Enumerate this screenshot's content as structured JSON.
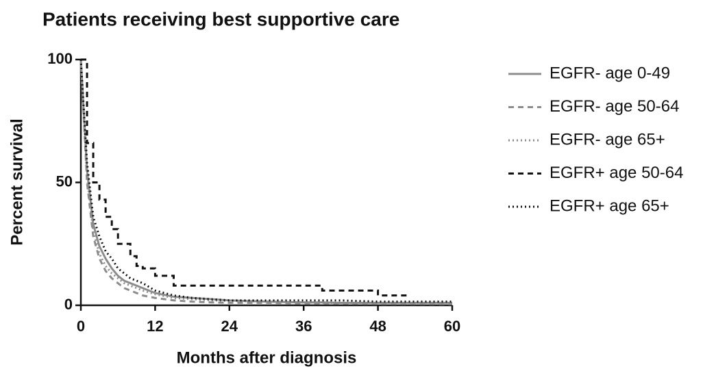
{
  "chart_data": {
    "type": "line",
    "title": "Patients receiving best supportive care",
    "xlabel": "Months after diagnosis",
    "ylabel": "Percent survival",
    "x": [
      0,
      1,
      2,
      3,
      4,
      5,
      6,
      7,
      8,
      9,
      10,
      12,
      15,
      18,
      21,
      24,
      30,
      36,
      39,
      42,
      48,
      53,
      60
    ],
    "series": [
      {
        "name": "EGFR- age 0-49",
        "color": "#8c8c8c",
        "dash": "none",
        "step": false,
        "values": [
          100,
          55,
          33,
          24,
          19,
          15,
          12,
          10,
          9,
          8,
          7,
          5,
          3.5,
          3,
          2.5,
          2,
          1.5,
          1.2,
          1.2,
          1,
          1,
          1,
          1
        ]
      },
      {
        "name": "EGFR- age 50-64",
        "color": "#8c8c8c",
        "dash": "8,6",
        "step": false,
        "values": [
          100,
          50,
          28,
          19,
          14,
          11,
          9,
          7,
          6,
          5,
          4,
          3,
          2,
          1.5,
          1.2,
          1,
          1,
          0.8,
          0.8,
          0.7,
          0.6,
          0.6,
          0.5
        ]
      },
      {
        "name": "EGFR- age 65+",
        "color": "#8c8c8c",
        "dash": "2,4",
        "step": false,
        "values": [
          100,
          52,
          30,
          21,
          16,
          13,
          11,
          9,
          8,
          7,
          6,
          4.5,
          3,
          2.5,
          2,
          1.8,
          1.5,
          1.2,
          1,
          1,
          1,
          1,
          1
        ]
      },
      {
        "name": "EGFR+ age 50-64",
        "color": "#111111",
        "dash": "8,6",
        "step": true,
        "values": [
          100,
          66,
          50,
          43,
          36,
          31,
          25,
          25,
          20,
          16,
          15,
          12,
          8,
          8,
          8,
          8,
          8,
          8,
          6,
          6,
          4,
          4,
          null
        ]
      },
      {
        "name": "EGFR+ age 65+",
        "color": "#111111",
        "dash": "2,4",
        "step": false,
        "values": [
          100,
          58,
          36,
          28,
          22,
          19,
          15,
          13,
          11,
          10,
          9,
          6,
          4,
          3,
          2.5,
          2,
          2,
          2,
          2,
          2,
          1.5,
          1.5,
          1.5
        ]
      }
    ],
    "xlim": [
      0,
      60
    ],
    "xticks": [
      0,
      12,
      24,
      36,
      48,
      60
    ],
    "ylim": [
      0,
      100
    ],
    "yticks": [
      0,
      50,
      100
    ],
    "grid": false,
    "legend": "right"
  }
}
